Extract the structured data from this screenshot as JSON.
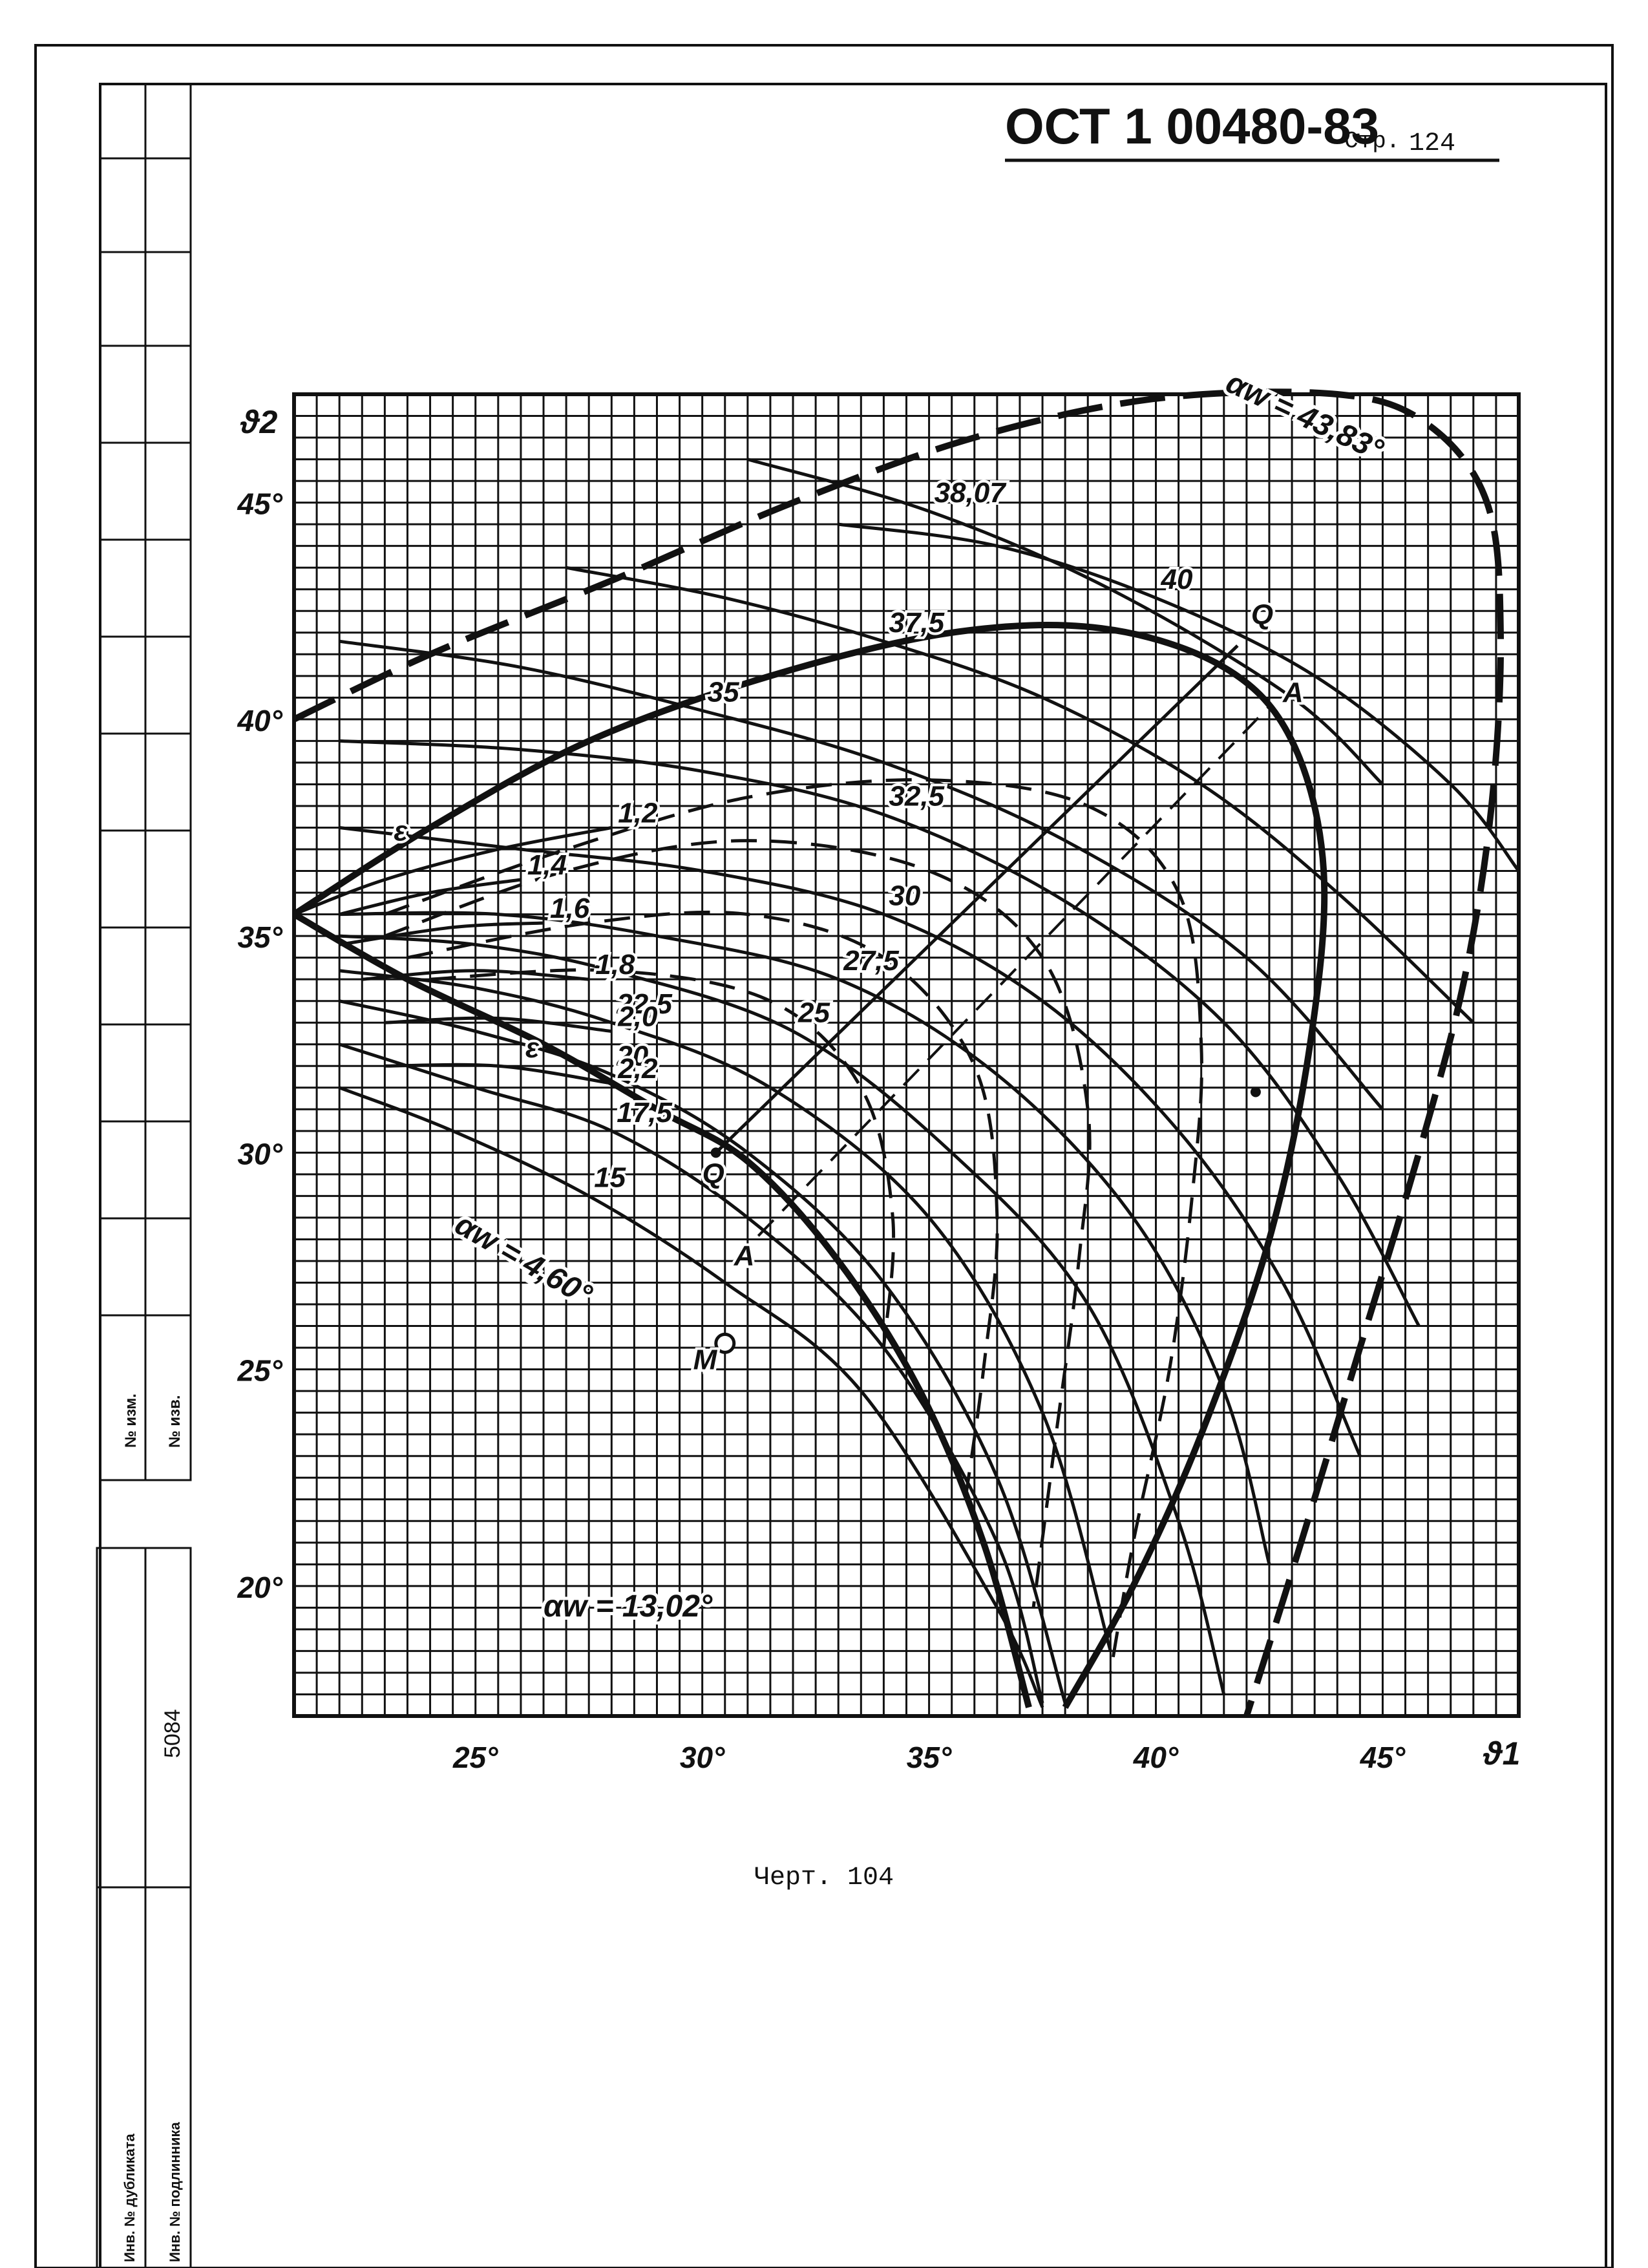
{
  "header": {
    "standard_code": "ОСТ 1 00480-83",
    "page_prefix": "Стр.",
    "page_number": "124"
  },
  "caption": "Черт. 104",
  "stamp": {
    "change_no": "№ изм.",
    "notice_no": "№ изв.",
    "inv_number": "5084",
    "duplicate_inv": "Инв. № дубликата",
    "original_inv": "Инв. № подлинника"
  },
  "chart_data": {
    "type": "line",
    "xlabel": "ϑ1",
    "ylabel": "ϑ2",
    "xlim": [
      21,
      48
    ],
    "ylim": [
      17,
      47.5
    ],
    "x_ticks": [
      {
        "value": 25,
        "label": "25°"
      },
      {
        "value": 30,
        "label": "30°"
      },
      {
        "value": 35,
        "label": "35°"
      },
      {
        "value": 40,
        "label": "40°"
      },
      {
        "value": 45,
        "label": "45°"
      }
    ],
    "y_ticks": [
      {
        "value": 20,
        "label": "20°"
      },
      {
        "value": 25,
        "label": "25°"
      },
      {
        "value": 30,
        "label": "30°"
      },
      {
        "value": 35,
        "label": "35°"
      },
      {
        "value": 40,
        "label": "40°"
      },
      {
        "value": 45,
        "label": "45°"
      }
    ],
    "grid": true,
    "alpha_w_lines": [
      {
        "label": "15",
        "points": [
          [
            22.0,
            31.5
          ],
          [
            24.5,
            30.5
          ],
          [
            27.5,
            29.0
          ],
          [
            30.5,
            27.0
          ],
          [
            33.5,
            24.5
          ],
          [
            36.5,
            19.5
          ],
          [
            37.5,
            17.2
          ]
        ]
      },
      {
        "label": "17,5",
        "points": [
          [
            22.0,
            32.5
          ],
          [
            25.0,
            31.5
          ],
          [
            28.0,
            30.5
          ],
          [
            31.0,
            28.5
          ],
          [
            34.0,
            25.5
          ],
          [
            36.5,
            21.0
          ],
          [
            37.5,
            17.3
          ]
        ]
      },
      {
        "label": "20",
        "points": [
          [
            22.0,
            33.5
          ],
          [
            25.0,
            32.8
          ],
          [
            28.0,
            31.8
          ],
          [
            31.0,
            30.0
          ],
          [
            34.0,
            27.0
          ],
          [
            36.5,
            22.5
          ],
          [
            38.0,
            17.3
          ]
        ]
      },
      {
        "label": "22,5",
        "points": [
          [
            22.0,
            34.2
          ],
          [
            25.0,
            33.8
          ],
          [
            28.0,
            33.0
          ],
          [
            31.5,
            31.5
          ],
          [
            35.0,
            28.5
          ],
          [
            37.5,
            24.0
          ],
          [
            39.0,
            18.5
          ]
        ]
      },
      {
        "label": "25",
        "points": [
          [
            22.0,
            35.0
          ],
          [
            25.0,
            34.8
          ],
          [
            28.0,
            34.2
          ],
          [
            32.0,
            32.8
          ],
          [
            35.5,
            30.0
          ],
          [
            38.5,
            26.5
          ],
          [
            40.5,
            21.5
          ],
          [
            41.5,
            17.5
          ]
        ]
      },
      {
        "label": "27,5",
        "points": [
          [
            22.0,
            35.5
          ],
          [
            25.5,
            35.5
          ],
          [
            29.0,
            35.0
          ],
          [
            33.0,
            34.0
          ],
          [
            36.5,
            31.8
          ],
          [
            39.5,
            28.5
          ],
          [
            41.5,
            24.5
          ],
          [
            42.5,
            20.5
          ]
        ]
      },
      {
        "label": "30",
        "points": [
          [
            22.0,
            37.5
          ],
          [
            26.0,
            37.0
          ],
          [
            30.0,
            36.5
          ],
          [
            34.0,
            35.5
          ],
          [
            37.5,
            33.5
          ],
          [
            40.5,
            30.5
          ],
          [
            42.8,
            27.0
          ],
          [
            44.5,
            23.0
          ]
        ]
      },
      {
        "label": "32,5",
        "points": [
          [
            22.0,
            39.5
          ],
          [
            26.0,
            39.3
          ],
          [
            30.0,
            38.8
          ],
          [
            34.0,
            37.8
          ],
          [
            38.0,
            35.8
          ],
          [
            41.5,
            33.0
          ],
          [
            44.0,
            29.5
          ],
          [
            45.8,
            26.0
          ]
        ]
      },
      {
        "label": "35",
        "points": [
          [
            22.0,
            41.8
          ],
          [
            26.0,
            41.2
          ],
          [
            30.0,
            40.2
          ],
          [
            34.0,
            39.0
          ],
          [
            38.0,
            37.2
          ],
          [
            42.0,
            34.5
          ],
          [
            45.0,
            31.0
          ]
        ]
      },
      {
        "label": "37,5",
        "points": [
          [
            27.0,
            43.5
          ],
          [
            30.5,
            42.8
          ],
          [
            34.0,
            41.8
          ],
          [
            37.5,
            40.5
          ],
          [
            41.0,
            38.5
          ],
          [
            44.0,
            36.0
          ],
          [
            47.0,
            33.0
          ]
        ]
      },
      {
        "label": "40",
        "points": [
          [
            33.0,
            44.5
          ],
          [
            36.5,
            44.0
          ],
          [
            40.0,
            42.8
          ],
          [
            43.5,
            41.0
          ],
          [
            46.5,
            38.5
          ],
          [
            48.0,
            36.5
          ]
        ]
      },
      {
        "label": "38,07",
        "points": [
          [
            31.0,
            46.0
          ],
          [
            35.0,
            44.8
          ],
          [
            39.0,
            43.0
          ],
          [
            43.0,
            40.5
          ],
          [
            45.0,
            38.5
          ]
        ]
      }
    ],
    "epsilon_lines": [
      {
        "label": "1,2",
        "points": [
          [
            21.0,
            35.5
          ],
          [
            23.0,
            36.3
          ],
          [
            25.5,
            37.0
          ],
          [
            28.0,
            37.5
          ]
        ]
      },
      {
        "label": "1,4",
        "points": [
          [
            22.0,
            35.5
          ],
          [
            24.0,
            36.0
          ],
          [
            26.0,
            36.3
          ]
        ]
      },
      {
        "label": "1,6",
        "points": [
          [
            22.0,
            34.8
          ],
          [
            24.5,
            35.2
          ],
          [
            26.5,
            35.3
          ]
        ]
      },
      {
        "label": "1,8",
        "points": [
          [
            22.5,
            34.0
          ],
          [
            25.0,
            34.2
          ],
          [
            27.5,
            34.0
          ]
        ]
      },
      {
        "label": "2,0",
        "points": [
          [
            23.0,
            33.0
          ],
          [
            25.5,
            33.1
          ],
          [
            28.0,
            32.8
          ]
        ]
      },
      {
        "label": "2,2",
        "points": [
          [
            23.0,
            32.0
          ],
          [
            25.5,
            32.0
          ],
          [
            28.0,
            31.6
          ]
        ]
      }
    ],
    "alpha_w_boundaries": [
      {
        "label": "αw = 43,83°",
        "style": "dashed-bold",
        "points": [
          [
            21.0,
            40.0
          ],
          [
            24.0,
            41.5
          ],
          [
            28.0,
            43.2
          ],
          [
            32.0,
            45.0
          ],
          [
            36.0,
            46.5
          ],
          [
            40.0,
            47.4
          ],
          [
            44.0,
            47.5
          ],
          [
            46.0,
            46.8
          ],
          [
            47.3,
            45.0
          ],
          [
            47.6,
            42.0
          ],
          [
            47.4,
            38.0
          ],
          [
            46.8,
            34.0
          ],
          [
            45.8,
            30.0
          ],
          [
            44.5,
            25.5
          ],
          [
            43.2,
            21.0
          ],
          [
            42.0,
            17.0
          ]
        ]
      },
      {
        "label": "αw = 13,02°",
        "style": "solid-bold",
        "points": [
          [
            21.0,
            35.5
          ],
          [
            24.0,
            37.5
          ],
          [
            27.5,
            39.5
          ],
          [
            31.5,
            41.0
          ],
          [
            35.5,
            42.0
          ],
          [
            38.8,
            42.1
          ],
          [
            41.5,
            41.2
          ],
          [
            43.0,
            39.5
          ],
          [
            43.7,
            36.5
          ],
          [
            43.4,
            32.5
          ],
          [
            42.5,
            28.0
          ],
          [
            41.0,
            23.5
          ],
          [
            39.5,
            20.0
          ],
          [
            38.0,
            17.2
          ]
        ]
      },
      {
        "label": "αw = 4,60°",
        "style": "solid-bold",
        "points": [
          [
            21.0,
            35.5
          ],
          [
            23.5,
            34.0
          ],
          [
            26.5,
            32.5
          ],
          [
            29.0,
            31.0
          ],
          [
            31.0,
            29.8
          ],
          [
            33.0,
            27.5
          ],
          [
            34.8,
            24.5
          ],
          [
            36.2,
            21.0
          ],
          [
            37.2,
            17.2
          ]
        ]
      }
    ],
    "dashed_curves": [
      {
        "points": [
          [
            23.0,
            35.5
          ],
          [
            27.0,
            37.0
          ],
          [
            31.0,
            38.2
          ],
          [
            35.0,
            38.6
          ],
          [
            38.5,
            38.0
          ],
          [
            40.5,
            36.0
          ],
          [
            41.0,
            32.5
          ],
          [
            40.8,
            29.0
          ],
          [
            40.3,
            25.0
          ],
          [
            39.5,
            21.0
          ],
          [
            39.0,
            18.0
          ]
        ]
      },
      {
        "points": [
          [
            23.0,
            35.0
          ],
          [
            27.0,
            36.5
          ],
          [
            31.0,
            37.2
          ],
          [
            35.0,
            36.5
          ],
          [
            37.5,
            34.5
          ],
          [
            38.5,
            31.0
          ],
          [
            38.3,
            27.5
          ],
          [
            37.8,
            23.5
          ],
          [
            37.3,
            19.5
          ]
        ]
      },
      {
        "points": [
          [
            23.5,
            34.5
          ],
          [
            27.5,
            35.3
          ],
          [
            31.0,
            35.5
          ],
          [
            34.0,
            34.5
          ],
          [
            36.0,
            32.0
          ],
          [
            36.5,
            28.5
          ],
          [
            36.2,
            25.0
          ],
          [
            35.8,
            22.0
          ]
        ]
      },
      {
        "points": [
          [
            24.0,
            34.0
          ],
          [
            28.0,
            34.2
          ],
          [
            31.5,
            33.5
          ],
          [
            33.5,
            31.5
          ],
          [
            34.2,
            28.5
          ],
          [
            34.0,
            25.5
          ]
        ]
      }
    ],
    "construction_lines": [
      {
        "label": "Q",
        "points": [
          [
            30.3,
            30.0
          ],
          [
            41.8,
            41.7
          ]
        ]
      },
      {
        "label": "A",
        "points": [
          [
            30.7,
            27.5
          ],
          [
            42.5,
            40.3
          ]
        ]
      }
    ],
    "annotations": [
      {
        "text": "Q",
        "x": 42.1,
        "y": 42.2
      },
      {
        "text": "A",
        "x": 42.8,
        "y": 40.4
      },
      {
        "text": "Q",
        "x": 30.0,
        "y": 29.3
      },
      {
        "text": "A",
        "x": 30.7,
        "y": 27.4
      },
      {
        "text": "M",
        "x": 29.8,
        "y": 25.0
      },
      {
        "text": "ε",
        "x": 23.2,
        "y": 37.2
      },
      {
        "text": "ε",
        "x": 26.1,
        "y": 32.2
      }
    ],
    "points": [
      {
        "label": "M",
        "x": 30.5,
        "y": 25.6,
        "marker": "open-circle"
      },
      {
        "label": "",
        "x": 30.3,
        "y": 30.0,
        "marker": "dot"
      },
      {
        "label": "",
        "x": 42.2,
        "y": 31.4,
        "marker": "dot"
      }
    ]
  }
}
